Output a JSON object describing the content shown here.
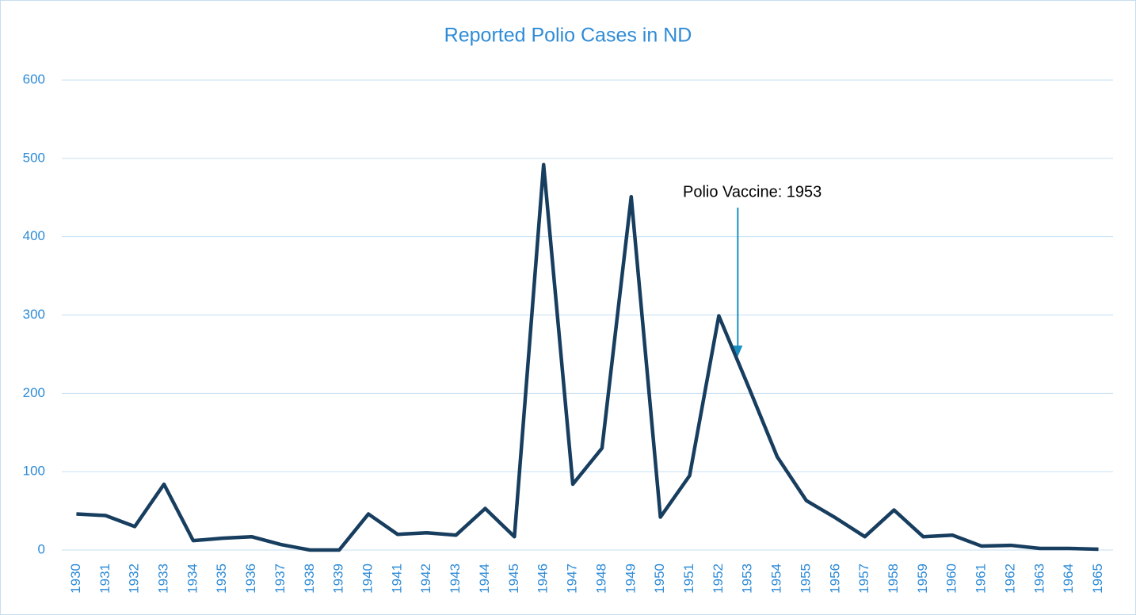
{
  "chart_data": {
    "type": "line",
    "title": "Reported Polio Cases in ND",
    "categories": [
      "1930",
      "1931",
      "1932",
      "1933",
      "1934",
      "1935",
      "1936",
      "1937",
      "1938",
      "1939",
      "1940",
      "1941",
      "1942",
      "1943",
      "1944",
      "1945",
      "1946",
      "1947",
      "1948",
      "1949",
      "1950",
      "1951",
      "1952",
      "1953",
      "1954",
      "1955",
      "1956",
      "1957",
      "1958",
      "1959",
      "1960",
      "1961",
      "1962",
      "1963",
      "1964",
      "1965"
    ],
    "series": [
      {
        "name": "Reported Polio Cases",
        "color": "#173d5f",
        "values": [
          46,
          44,
          30,
          84,
          12,
          15,
          17,
          7,
          0,
          0,
          46,
          20,
          22,
          19,
          53,
          17,
          492,
          84,
          130,
          451,
          42,
          95,
          299,
          210,
          119,
          63,
          41,
          17,
          51,
          17,
          19,
          5,
          6,
          2,
          2,
          1
        ]
      }
    ],
    "ylim": [
      0,
      600
    ],
    "yticks": [
      0,
      100,
      200,
      300,
      400,
      500,
      600
    ],
    "grid": true,
    "annotations": [
      {
        "text": "Polio Vaccine: 1953"
      }
    ]
  }
}
